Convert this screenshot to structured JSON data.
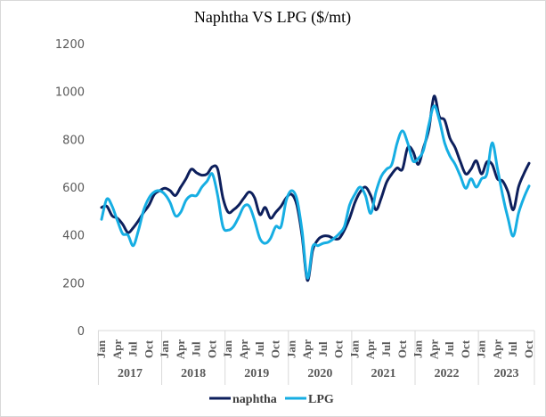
{
  "chart_data": {
    "type": "line",
    "title": "Naphtha VS LPG ($/mt)",
    "xlabel": "",
    "ylabel": "",
    "ylim": [
      0,
      1200
    ],
    "yticks": [
      0,
      200,
      400,
      600,
      800,
      1000,
      1200
    ],
    "ytick_note": "Y tick labels are rendered in a symbol (Wingdings) font in the original",
    "grid": false,
    "legend_position": "bottom",
    "month_tick_labels": [
      "Jan",
      "Apr",
      "Jul",
      "Oct"
    ],
    "years": [
      "2017",
      "2018",
      "2019",
      "2020",
      "2021",
      "2022",
      "2023"
    ],
    "x_start": "2017-01",
    "x_end": "2023-10",
    "frequency": "monthly",
    "series": [
      {
        "name": "naphtha",
        "color": "#0d1f5c",
        "values": [
          515,
          520,
          480,
          470,
          445,
          410,
          430,
          460,
          495,
          525,
          570,
          585,
          595,
          585,
          565,
          600,
          635,
          675,
          660,
          650,
          655,
          685,
          675,
          555,
          495,
          505,
          525,
          555,
          580,
          555,
          485,
          515,
          470,
          495,
          520,
          555,
          570,
          525,
          395,
          210,
          335,
          380,
          395,
          395,
          385,
          385,
          420,
          470,
          535,
          580,
          600,
          565,
          505,
          555,
          620,
          655,
          680,
          675,
          765,
          750,
          695,
          765,
          840,
          980,
          895,
          880,
          805,
          765,
          705,
          655,
          675,
          710,
          655,
          705,
          695,
          635,
          625,
          580,
          505,
          600,
          655,
          700
        ]
      },
      {
        "name": "LPG",
        "color": "#16aee3",
        "values": [
          465,
          550,
          520,
          460,
          405,
          400,
          355,
          420,
          505,
          555,
          580,
          585,
          570,
          535,
          480,
          495,
          545,
          565,
          565,
          600,
          625,
          655,
          565,
          435,
          420,
          435,
          475,
          520,
          520,
          460,
          385,
          365,
          385,
          435,
          435,
          545,
          585,
          550,
          415,
          220,
          350,
          355,
          365,
          370,
          385,
          405,
          435,
          525,
          570,
          600,
          565,
          490,
          580,
          645,
          675,
          695,
          785,
          835,
          785,
          710,
          720,
          755,
          860,
          940,
          880,
          785,
          730,
          695,
          645,
          595,
          635,
          600,
          635,
          655,
          785,
          680,
          565,
          470,
          395,
          490,
          555,
          605
        ]
      }
    ]
  }
}
